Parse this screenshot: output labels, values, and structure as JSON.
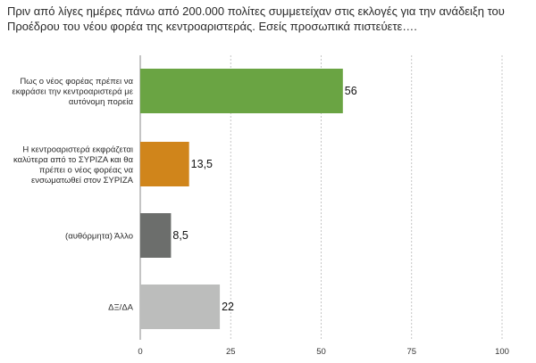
{
  "header": {
    "title": "Πριν από λίγες ημέρες πάνω από 200.000 πολίτες συμμετείχαν στις εκλογές για την ανάδειξη του Προέδρου του νέου φορέα της κεντροαριστεράς. Εσείς προσωπικά πιστεύετε…."
  },
  "chart_data": {
    "type": "bar",
    "orientation": "horizontal",
    "title": "Πριν από λίγες ημέρες πάνω από 200.000 πολίτες συμμετείχαν στις εκλογές για την ανάδειξη του Προέδρου του νέου φορέα της κεντροαριστεράς. Εσείς προσωπικά πιστεύετε….",
    "categories": [
      [
        "Πως ο νέος φορέας πρέπει να",
        "εκφράσει την κεντροαριστερά με",
        "αυτόνομη πορεία"
      ],
      [
        "Η κεντροαριστερά εκφράζεται",
        "καλύτερα από το ΣΥΡΙΖΑ και θα",
        "πρέπει ο νέος φορέας να",
        "ενσωματωθεί στον ΣΥΡΙΖΑ"
      ],
      [
        "(αυθόρμητα) Άλλο"
      ],
      [
        "ΔΞ/ΔΑ"
      ]
    ],
    "values": [
      56,
      13.5,
      8.5,
      22
    ],
    "value_labels": [
      "56",
      "13,5",
      "8,5",
      "22"
    ],
    "colors": [
      "#6aa443",
      "#d0851b",
      "#6c6e6c",
      "#bcbdbc"
    ],
    "xlim": [
      0,
      100
    ],
    "xticks": [
      0,
      25,
      50,
      75,
      100
    ],
    "grid": "vertical dashed",
    "legend": "none"
  }
}
